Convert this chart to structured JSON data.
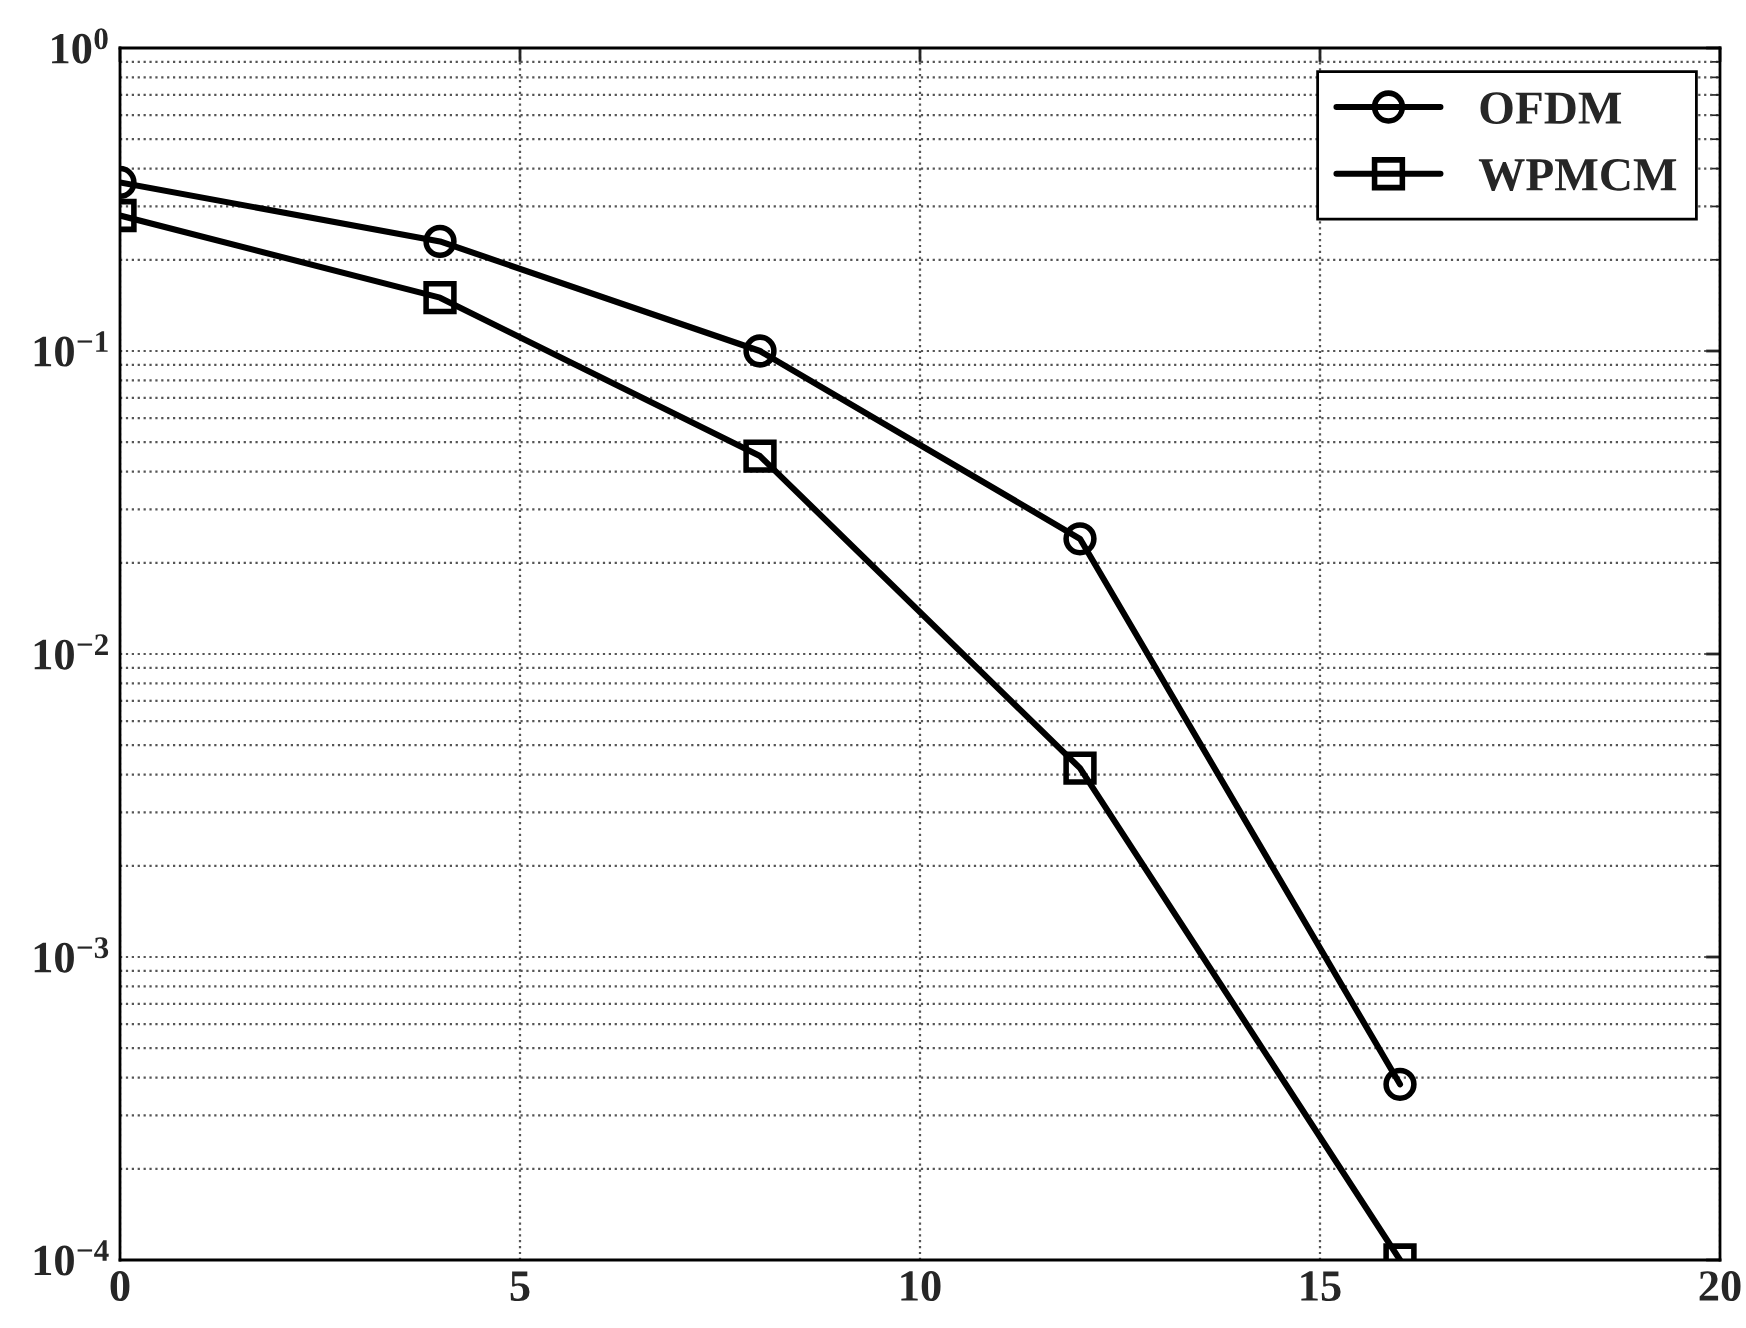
{
  "chart_data": {
    "type": "line",
    "x": [
      0,
      4,
      8,
      12,
      16
    ],
    "series": [
      {
        "name": "OFDM",
        "color": "#000000",
        "marker": "circle",
        "values": [
          0.36,
          0.23,
          0.1,
          0.024,
          0.00038
        ]
      },
      {
        "name": "WPMCM",
        "color": "#000000",
        "marker": "square",
        "values": [
          0.28,
          0.15,
          0.045,
          0.0042,
          0.0001
        ]
      }
    ],
    "log": "y",
    "xlim": [
      0,
      20
    ],
    "xticks": [
      0,
      5,
      10,
      15,
      20
    ],
    "ylim": [
      0.0001,
      1
    ],
    "yticks": [
      {
        "value": 0.0001,
        "label": "10$^{−4}$"
      },
      {
        "value": 0.001,
        "label": "10$^{−3}$"
      },
      {
        "value": 0.01,
        "label": "10$^{−2}$"
      },
      {
        "value": 0.1,
        "label": "10$^{−1}$"
      },
      {
        "value": 1,
        "label": "10$^{0}$"
      }
    ],
    "grid": true,
    "legend": "top right",
    "line_style": "solid"
  }
}
